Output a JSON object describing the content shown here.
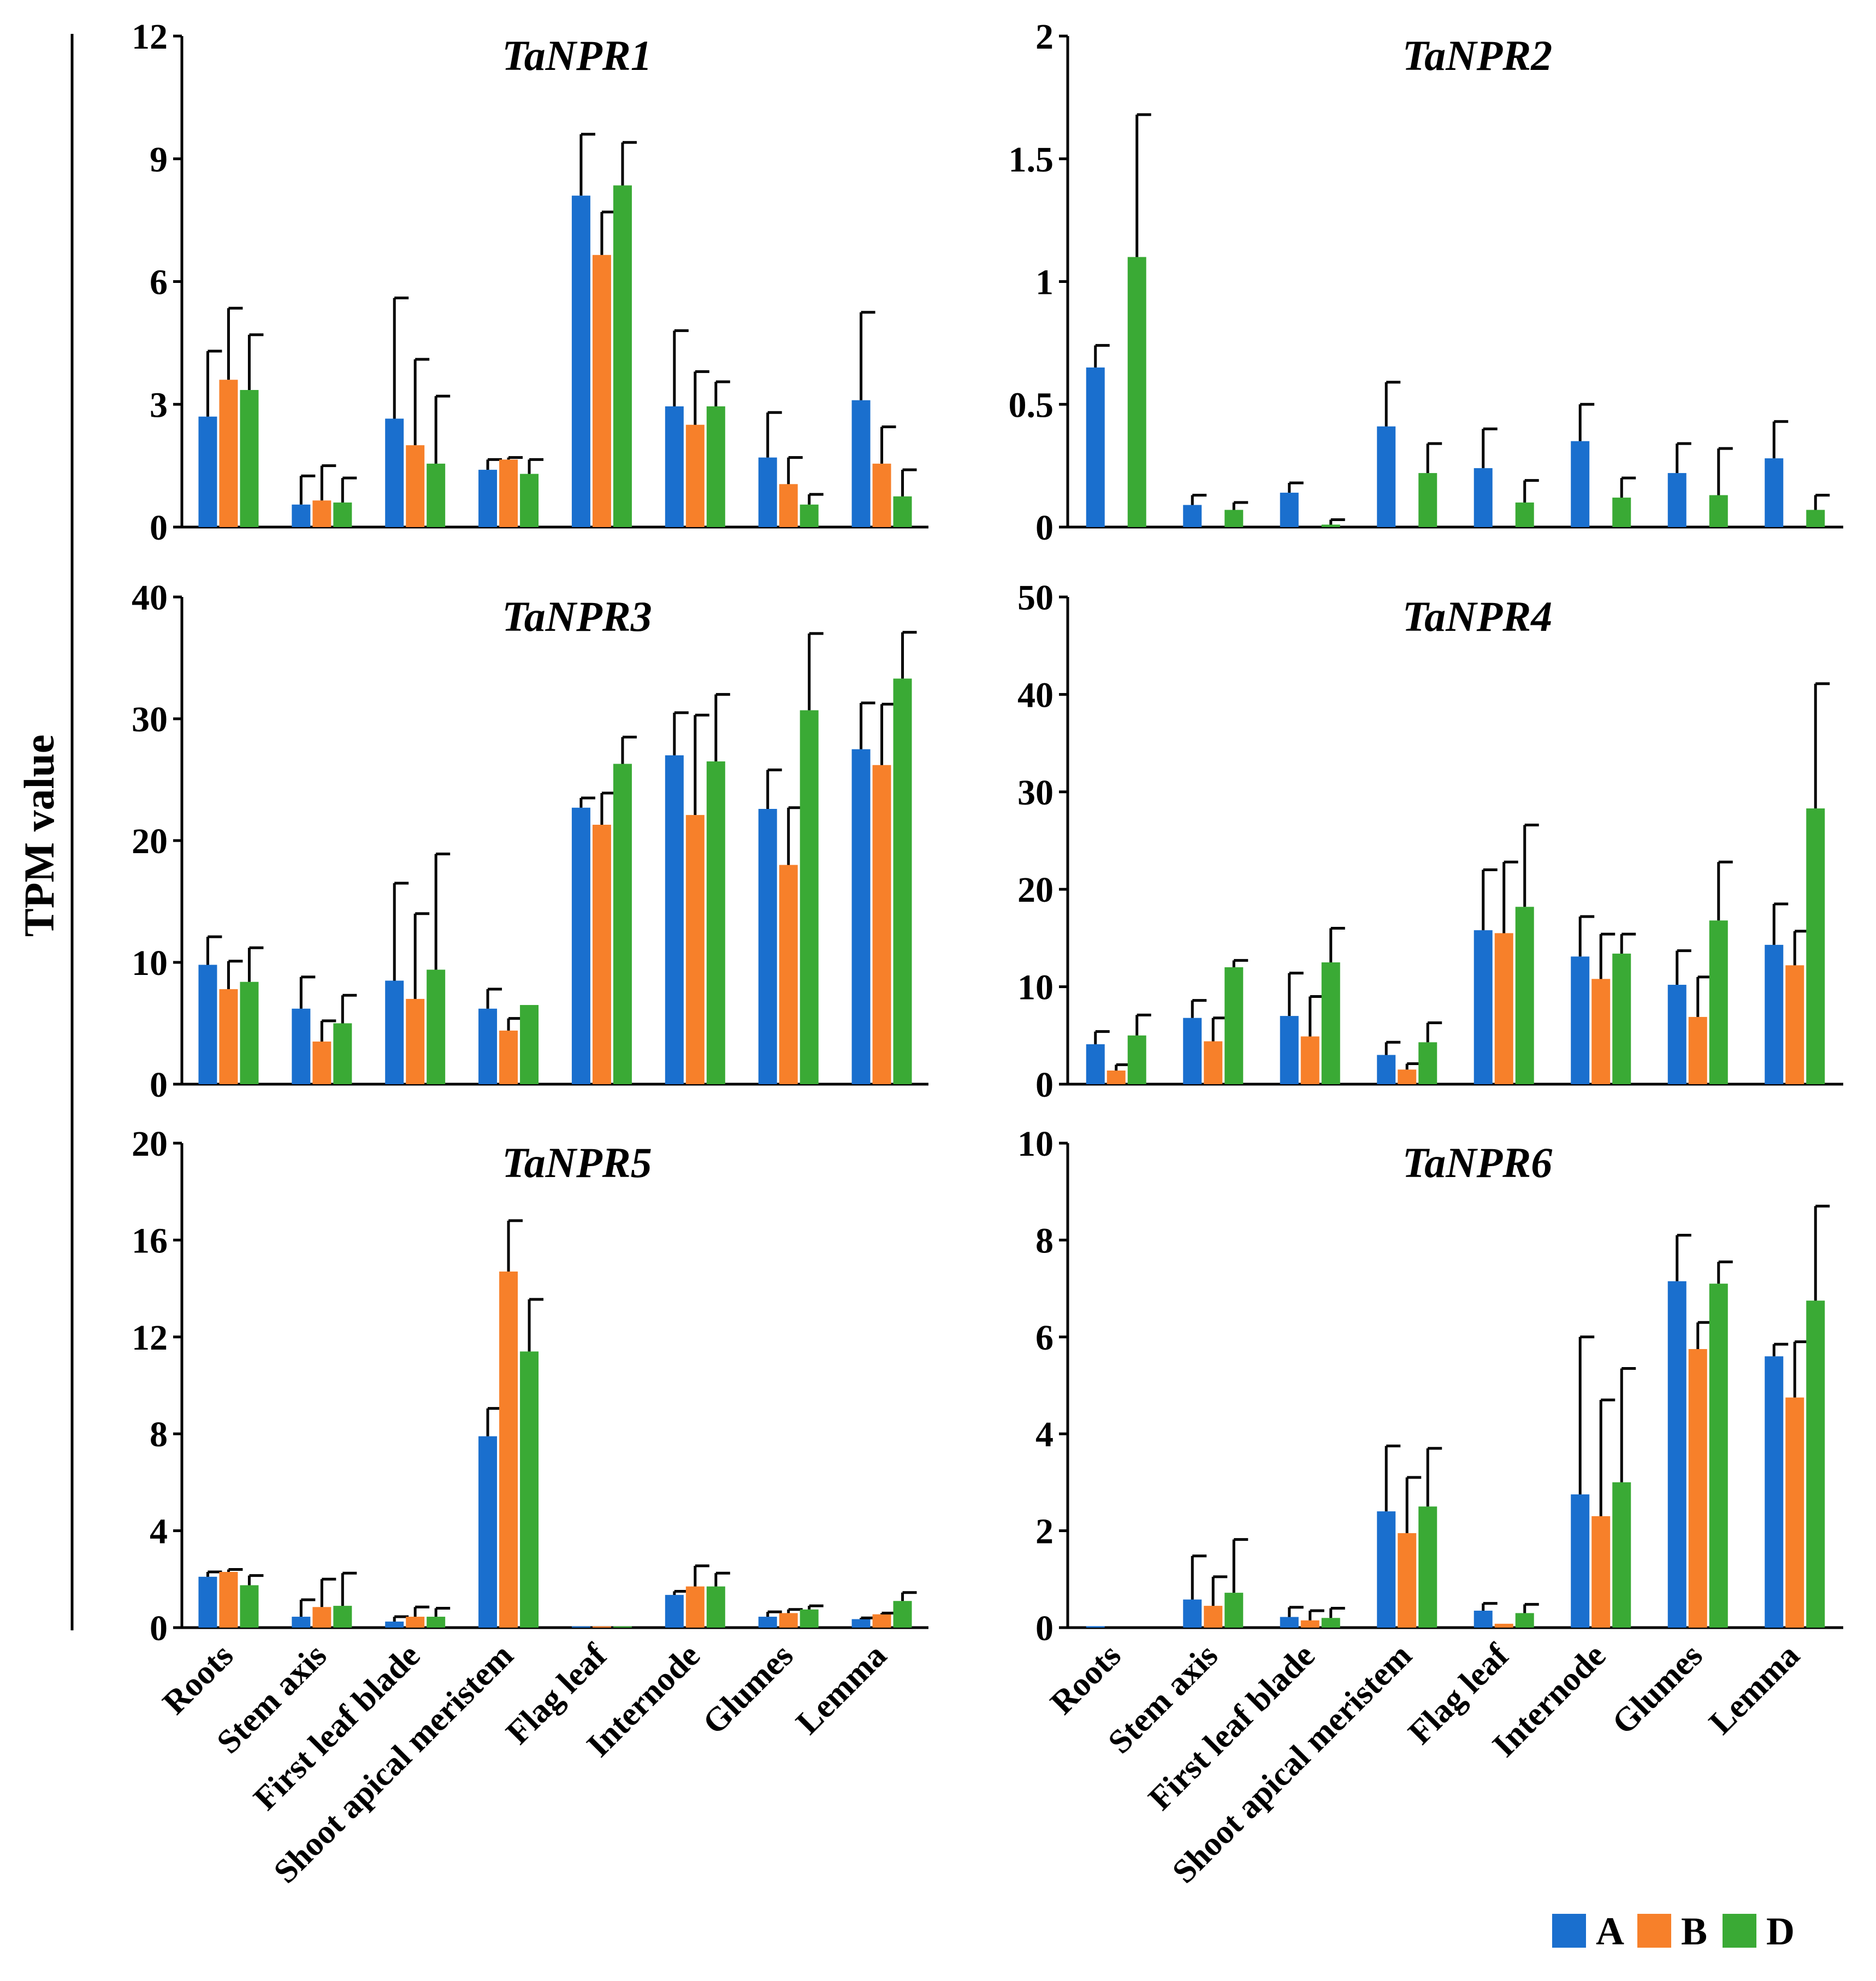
{
  "figure": {
    "ylabel": "TPM value",
    "categories": [
      "Roots",
      "Stem axis",
      "First leaf blade",
      "Shoot apical meristem",
      "Flag leaf",
      "Internode",
      "Glumes",
      "Lemma"
    ],
    "legend": [
      {
        "label": "A",
        "color": "#1a6fce"
      },
      {
        "label": "B",
        "color": "#f7802a"
      },
      {
        "label": "D",
        "color": "#3aaa35"
      }
    ]
  },
  "chart_data": [
    {
      "type": "bar",
      "title": "TaNPR1",
      "ylim": [
        0,
        12
      ],
      "yticks": [
        "0",
        "3",
        "6",
        "9",
        "12"
      ],
      "show_category_labels": false,
      "series": [
        {
          "name": "A",
          "values": [
            2.7,
            0.55,
            2.65,
            1.4,
            8.1,
            2.95,
            1.7,
            3.1
          ],
          "errors": [
            1.6,
            0.7,
            2.95,
            0.25,
            1.5,
            1.85,
            1.1,
            2.15
          ]
        },
        {
          "name": "B",
          "values": [
            3.6,
            0.65,
            2.0,
            1.65,
            6.65,
            2.5,
            1.05,
            1.55
          ],
          "errors": [
            1.75,
            0.85,
            2.1,
            0.05,
            1.05,
            1.3,
            0.65,
            0.9
          ]
        },
        {
          "name": "D",
          "values": [
            3.35,
            0.6,
            1.55,
            1.3,
            8.35,
            2.95,
            0.55,
            0.75
          ],
          "errors": [
            1.35,
            0.6,
            1.65,
            0.35,
            1.05,
            0.6,
            0.25,
            0.65
          ]
        }
      ]
    },
    {
      "type": "bar",
      "title": "TaNPR2",
      "ylim": [
        0,
        2
      ],
      "yticks": [
        "0",
        "0.5",
        "1",
        "1.5",
        "2"
      ],
      "show_category_labels": false,
      "series": [
        {
          "name": "A",
          "values": [
            0.65,
            0.09,
            0.14,
            0.41,
            0.24,
            0.35,
            0.22,
            0.28
          ],
          "errors": [
            0.09,
            0.04,
            0.04,
            0.18,
            0.16,
            0.15,
            0.12,
            0.15
          ]
        },
        {
          "name": "B",
          "values": [
            0,
            0,
            0,
            0,
            0,
            0,
            0,
            0
          ],
          "errors": [
            0,
            0,
            0,
            0,
            0,
            0,
            0,
            0
          ]
        },
        {
          "name": "D",
          "values": [
            1.1,
            0.07,
            0.01,
            0.22,
            0.1,
            0.12,
            0.13,
            0.07
          ],
          "errors": [
            0.58,
            0.03,
            0.02,
            0.12,
            0.09,
            0.08,
            0.19,
            0.06
          ]
        }
      ]
    },
    {
      "type": "bar",
      "title": "TaNPR3",
      "ylim": [
        0,
        40
      ],
      "yticks": [
        "0",
        "10",
        "20",
        "30",
        "40"
      ],
      "show_category_labels": false,
      "series": [
        {
          "name": "A",
          "values": [
            9.8,
            6.2,
            8.5,
            6.2,
            22.7,
            27.0,
            22.6,
            27.5
          ],
          "errors": [
            2.3,
            2.6,
            8.0,
            1.6,
            0.8,
            3.5,
            3.2,
            3.8
          ]
        },
        {
          "name": "B",
          "values": [
            7.8,
            3.5,
            7.0,
            4.4,
            21.3,
            22.1,
            18.0,
            26.2
          ],
          "errors": [
            2.3,
            1.7,
            7.0,
            1.0,
            2.6,
            8.2,
            4.7,
            5.0
          ]
        },
        {
          "name": "D",
          "values": [
            8.4,
            5.0,
            9.4,
            6.5,
            26.3,
            26.5,
            30.7,
            33.3
          ],
          "errors": [
            2.8,
            2.3,
            9.5,
            0.0,
            2.2,
            5.5,
            6.3,
            3.8
          ]
        }
      ]
    },
    {
      "type": "bar",
      "title": "TaNPR4",
      "ylim": [
        0,
        50
      ],
      "yticks": [
        "0",
        "10",
        "20",
        "30",
        "40",
        "50"
      ],
      "show_category_labels": false,
      "series": [
        {
          "name": "A",
          "values": [
            4.1,
            6.8,
            7.0,
            3.0,
            15.8,
            13.1,
            10.2,
            14.3
          ],
          "errors": [
            1.3,
            1.8,
            4.4,
            1.3,
            6.2,
            4.1,
            3.5,
            4.2
          ]
        },
        {
          "name": "B",
          "values": [
            1.4,
            4.4,
            4.9,
            1.5,
            15.5,
            10.8,
            6.9,
            12.2
          ],
          "errors": [
            0.6,
            2.4,
            4.1,
            0.6,
            7.3,
            4.6,
            4.1,
            3.5
          ]
        },
        {
          "name": "D",
          "values": [
            5.0,
            12.0,
            12.5,
            4.3,
            18.2,
            13.4,
            16.8,
            28.3
          ],
          "errors": [
            2.1,
            0.7,
            3.5,
            2.0,
            8.4,
            2.0,
            6.0,
            12.8
          ]
        }
      ]
    },
    {
      "type": "bar",
      "title": "TaNPR5",
      "ylim": [
        0,
        20
      ],
      "yticks": [
        "0",
        "4",
        "8",
        "12",
        "16",
        "20"
      ],
      "show_category_labels": true,
      "series": [
        {
          "name": "A",
          "values": [
            2.1,
            0.45,
            0.25,
            7.9,
            0.05,
            1.35,
            0.45,
            0.35
          ],
          "errors": [
            0.2,
            0.7,
            0.2,
            1.15,
            0.0,
            0.15,
            0.2,
            0.05
          ]
        },
        {
          "name": "B",
          "values": [
            2.3,
            0.85,
            0.45,
            14.7,
            0.05,
            1.7,
            0.6,
            0.55
          ],
          "errors": [
            0.1,
            1.15,
            0.4,
            2.1,
            0.0,
            0.85,
            0.15,
            0.05
          ]
        },
        {
          "name": "D",
          "values": [
            1.75,
            0.9,
            0.45,
            11.4,
            0.05,
            1.7,
            0.75,
            1.1
          ],
          "errors": [
            0.4,
            1.35,
            0.35,
            2.15,
            0.0,
            0.55,
            0.15,
            0.35
          ]
        }
      ]
    },
    {
      "type": "bar",
      "title": "TaNPR6",
      "ylim": [
        0,
        10
      ],
      "yticks": [
        "0",
        "2",
        "4",
        "6",
        "8",
        "10"
      ],
      "show_category_labels": true,
      "series": [
        {
          "name": "A",
          "values": [
            0.03,
            0.58,
            0.22,
            2.4,
            0.35,
            2.75,
            7.15,
            5.6
          ],
          "errors": [
            0.0,
            0.9,
            0.2,
            1.35,
            0.15,
            3.25,
            0.95,
            0.25
          ]
        },
        {
          "name": "B",
          "values": [
            0,
            0.45,
            0.15,
            1.95,
            0.08,
            2.3,
            5.75,
            4.75
          ],
          "errors": [
            0,
            0.6,
            0.2,
            1.15,
            0.0,
            2.4,
            0.55,
            1.15
          ]
        },
        {
          "name": "D",
          "values": [
            0,
            0.72,
            0.2,
            2.5,
            0.3,
            3.0,
            7.1,
            6.75
          ],
          "errors": [
            0,
            1.1,
            0.2,
            1.2,
            0.18,
            2.35,
            0.45,
            1.95
          ]
        }
      ]
    }
  ]
}
